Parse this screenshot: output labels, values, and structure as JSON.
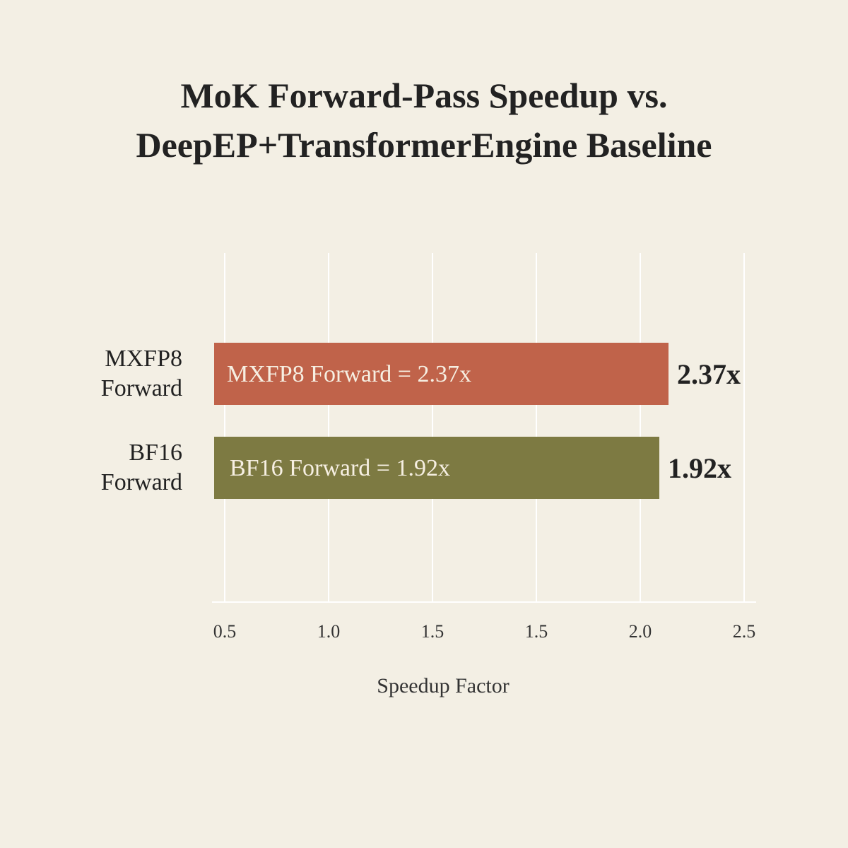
{
  "chart_data": {
    "type": "bar",
    "orientation": "horizontal",
    "title": [
      "MoK Forward-Pass Speedup vs.",
      "DeepEP+TransformerEngine Baseline"
    ],
    "xlabel": "Speedup Factor",
    "ylabel": "",
    "x_ticks": [
      "0.5",
      "1.0",
      "1.5",
      "1.5",
      "2.0",
      "2.5"
    ],
    "grid": true,
    "categories": [
      [
        "MXFP8",
        "Forward"
      ],
      [
        "BF16",
        "Forward"
      ]
    ],
    "values": [
      2.37,
      1.92
    ],
    "bar_labels": [
      "MXFP8 Forward = 2.37x",
      "BF16 Forward = 1.92x"
    ],
    "value_labels": [
      "2.37x",
      "1.92x"
    ],
    "colors": [
      "#c0634a",
      "#7d7a42"
    ]
  }
}
